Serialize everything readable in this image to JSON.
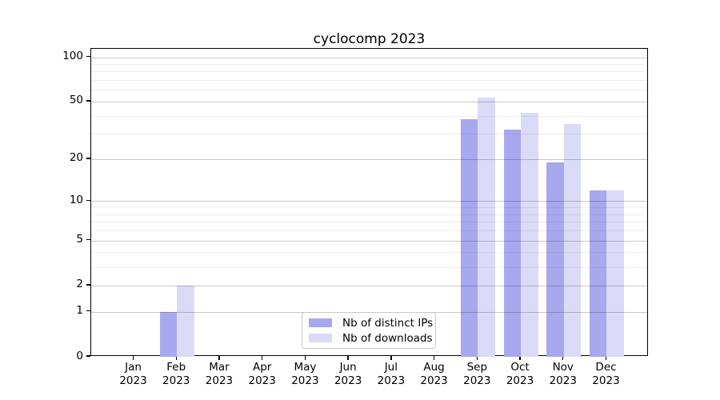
{
  "title": "cyclocomp 2023",
  "chart_data": {
    "type": "bar",
    "title": "cyclocomp 2023",
    "categories": [
      "Jan 2023",
      "Feb 2023",
      "Mar 2023",
      "Apr 2023",
      "May 2023",
      "Jun 2023",
      "Jul 2023",
      "Aug 2023",
      "Sep 2023",
      "Oct 2023",
      "Nov 2023",
      "Dec 2023"
    ],
    "months": [
      "Jan",
      "Feb",
      "Mar",
      "Apr",
      "May",
      "Jun",
      "Jul",
      "Aug",
      "Sep",
      "Oct",
      "Nov",
      "Dec"
    ],
    "year_label": "2023",
    "series": [
      {
        "name": "Nb of distinct IPs",
        "color": "#a8a8ef",
        "values": [
          0,
          1,
          0,
          0,
          0,
          0,
          0,
          0,
          38,
          32,
          19,
          12
        ]
      },
      {
        "name": "Nb of downloads",
        "color": "#dbdbf8",
        "values": [
          0,
          2,
          0,
          0,
          0,
          0,
          0,
          0,
          53,
          42,
          35,
          12
        ]
      }
    ],
    "yscale": "log1p",
    "ylim": [
      0,
      113
    ],
    "yticks": [
      0,
      1,
      2,
      5,
      10,
      20,
      50,
      100
    ],
    "ytick_labels": [
      "0",
      "1",
      "2",
      "5",
      "10",
      "20",
      "50",
      "100"
    ],
    "minor_gridlines": [
      3,
      4,
      6,
      7,
      8,
      9,
      30,
      40,
      60,
      70,
      80,
      90
    ],
    "grid": true,
    "legend_position": "lower center",
    "xlabel": "",
    "ylabel": ""
  },
  "colors": {
    "bar_distinct_ips": "#a8a8ef",
    "bar_downloads": "#dbdbf8",
    "grid_major": "#c9c9c9",
    "grid_minor": "#efefef",
    "spine": "#000000",
    "background": "#ffffff"
  }
}
